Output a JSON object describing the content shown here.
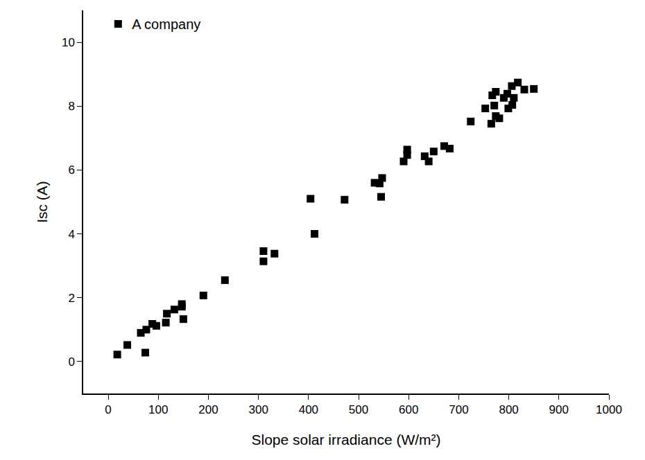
{
  "chart_data": {
    "type": "scatter",
    "x_label": "Slope solar irradiance (W/m²)",
    "y_label": "Isc (A)",
    "legend": "upper left",
    "grid": false,
    "xlim": [
      -50,
      1000
    ],
    "xticks": [
      0,
      100,
      200,
      300,
      400,
      500,
      600,
      700,
      800,
      900,
      1000
    ],
    "ylim": [
      -1,
      11
    ],
    "yticks": [
      0,
      2,
      4,
      6,
      8,
      10
    ],
    "series": [
      {
        "name": "A company",
        "color": "#000000",
        "marker": "square",
        "x": [
          18,
          38,
          65,
          74,
          76,
          88,
          96,
          115,
          117,
          132,
          147,
          147,
          150,
          190,
          233,
          310,
          310,
          332,
          404,
          412,
          472,
          532,
          542,
          545,
          547,
          590,
          597,
          597,
          632,
          640,
          650,
          671,
          682,
          724,
          753,
          765,
          767,
          771,
          774,
          774,
          781,
          790,
          797,
          799,
          806,
          807,
          810,
          818,
          831,
          850
        ],
        "values": [
          0.22,
          0.52,
          0.9,
          0.28,
          1.0,
          1.18,
          1.12,
          1.22,
          1.5,
          1.63,
          1.8,
          1.72,
          1.33,
          2.07,
          2.55,
          3.46,
          3.14,
          3.38,
          5.1,
          4.0,
          5.07,
          5.6,
          5.58,
          5.16,
          5.75,
          6.27,
          6.64,
          6.47,
          6.43,
          6.27,
          6.58,
          6.75,
          6.67,
          7.52,
          7.93,
          7.45,
          8.34,
          8.02,
          8.45,
          7.69,
          7.62,
          8.26,
          8.39,
          7.93,
          8.63,
          8.04,
          8.26,
          8.74,
          8.52,
          8.54
        ]
      }
    ]
  }
}
